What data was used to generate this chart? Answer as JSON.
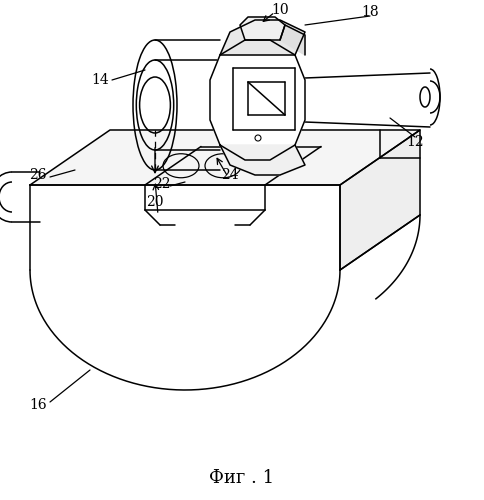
{
  "bg_color": "#ffffff",
  "line_color": "#000000",
  "caption": "Фиг . 1",
  "lw": 1.1
}
